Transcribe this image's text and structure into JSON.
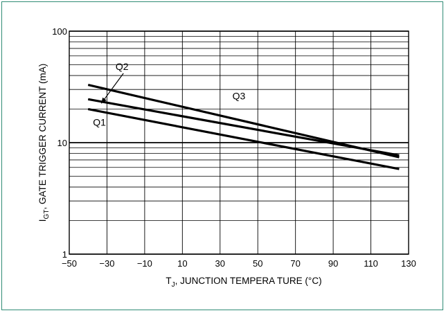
{
  "chart_data": {
    "type": "line",
    "title": "",
    "xlabel": "Tⱼ, JUNCTION TEMPERA TURE (°C)",
    "xlabel_main": "T",
    "xlabel_sub": "J",
    "xlabel_rest": ", JUNCTION TEMPERA TURE (°C)",
    "ylabel_main": "I",
    "ylabel_sub": "GT",
    "ylabel_rest": ", GATE TRIGGER CURRENT (mA)",
    "x_ticks": [
      "−50",
      "−30",
      "−10",
      "10",
      "30",
      "50",
      "70",
      "90",
      "110",
      "130"
    ],
    "x_tick_values": [
      -50,
      -30,
      -10,
      10,
      30,
      50,
      70,
      90,
      110,
      130
    ],
    "y_ticks": [
      "1",
      "10",
      "100"
    ],
    "y_tick_values": [
      1,
      10,
      100
    ],
    "xlim": [
      -50,
      130
    ],
    "ylim": [
      1,
      100
    ],
    "y_scale": "log",
    "grid": true,
    "series": [
      {
        "name": "Q1",
        "x": [
          -40,
          125
        ],
        "y": [
          20,
          5.8
        ]
      },
      {
        "name": "Q2",
        "x": [
          -40,
          125
        ],
        "y": [
          24.5,
          7.7
        ]
      },
      {
        "name": "Q3",
        "x": [
          -40,
          125
        ],
        "y": [
          33,
          7.4
        ]
      }
    ],
    "annotations": [
      {
        "text": "Q1",
        "x": -34,
        "y": 14.2
      },
      {
        "text": "Q2",
        "x": -22,
        "y": 45
      },
      {
        "text": "Q3",
        "x": 40,
        "y": 24.5
      }
    ],
    "arrow_to": {
      "x": -33,
      "y": 22.5
    }
  }
}
